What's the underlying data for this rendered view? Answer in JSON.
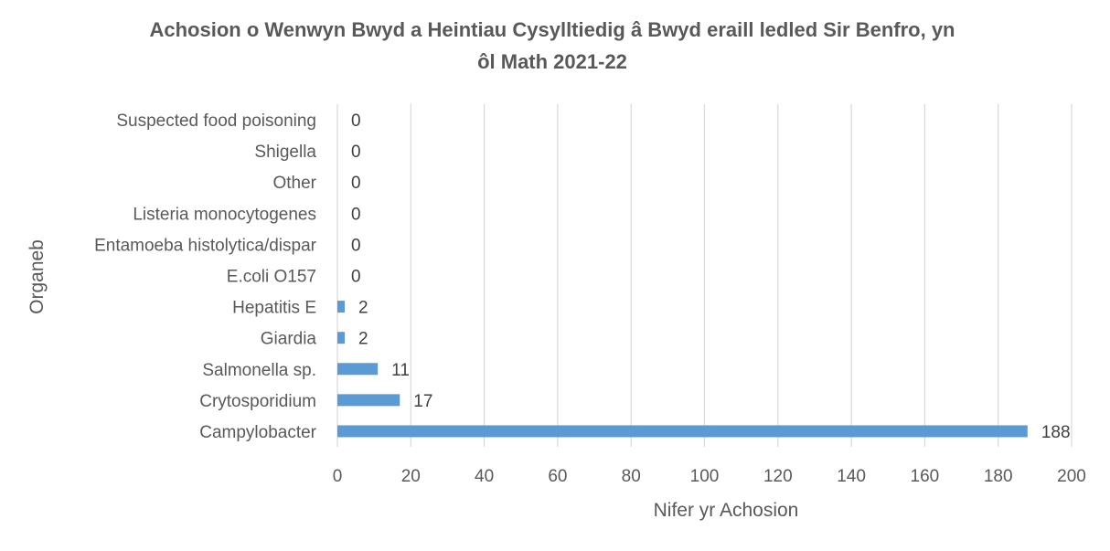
{
  "chart_data": {
    "type": "bar",
    "orientation": "horizontal",
    "title_lines": [
      "Achosion o Wenwyn Bwyd a Heintiau Cysylltiedig â Bwyd eraill ledled Sir Benfro, yn",
      "ôl Math 2021-22"
    ],
    "xlabel": "Nifer yr Achosion",
    "ylabel": "Organeb",
    "categories": [
      "Campylobacter",
      "Crytosporidium",
      "Salmonella sp.",
      "Giardia",
      "Hepatitis E",
      "E.coli O157",
      "Entamoeba histolytica/dispar",
      "Listeria monocytogenes",
      "Other",
      "Shigella",
      "Suspected food poisoning"
    ],
    "values": [
      188,
      17,
      11,
      2,
      2,
      0,
      0,
      0,
      0,
      0,
      0
    ],
    "xlim": [
      0,
      200
    ],
    "xticks": [
      0,
      20,
      40,
      60,
      80,
      100,
      120,
      140,
      160,
      180,
      200
    ],
    "grid": "vertical",
    "legend": "none",
    "bar_color": "#5b9bd5"
  }
}
